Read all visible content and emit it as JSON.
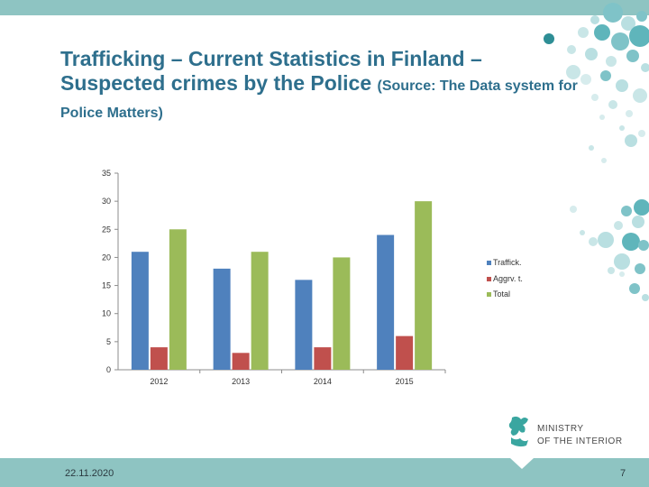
{
  "slide": {
    "title_main": "Trafficking – Current Statistics in Finland – Suspected crimes by the Police",
    "title_source": "(Source: The Data system for Police Matters)",
    "date": "22.11.2020",
    "page_number": "7"
  },
  "logo": {
    "line1": "MINISTRY",
    "line2": "OF THE INTERIOR"
  },
  "colors": {
    "accent": "#8ec4c2",
    "title": "#2e6f8d",
    "series": [
      "#4f81bd",
      "#c0504d",
      "#9bbb59"
    ]
  },
  "chart_data": {
    "type": "bar",
    "categories": [
      "2012",
      "2013",
      "2014",
      "2015"
    ],
    "series": [
      {
        "name": "Traffick.",
        "values": [
          21,
          18,
          16,
          24
        ]
      },
      {
        "name": "Aggrv. t.",
        "values": [
          4,
          3,
          4,
          6
        ]
      },
      {
        "name": "Total",
        "values": [
          25,
          21,
          20,
          30
        ]
      }
    ],
    "yticks": [
      "0",
      "5",
      "10",
      "15",
      "20",
      "25",
      "30",
      "35"
    ],
    "ylim": [
      0,
      35
    ],
    "grid": false,
    "legend": "right"
  }
}
